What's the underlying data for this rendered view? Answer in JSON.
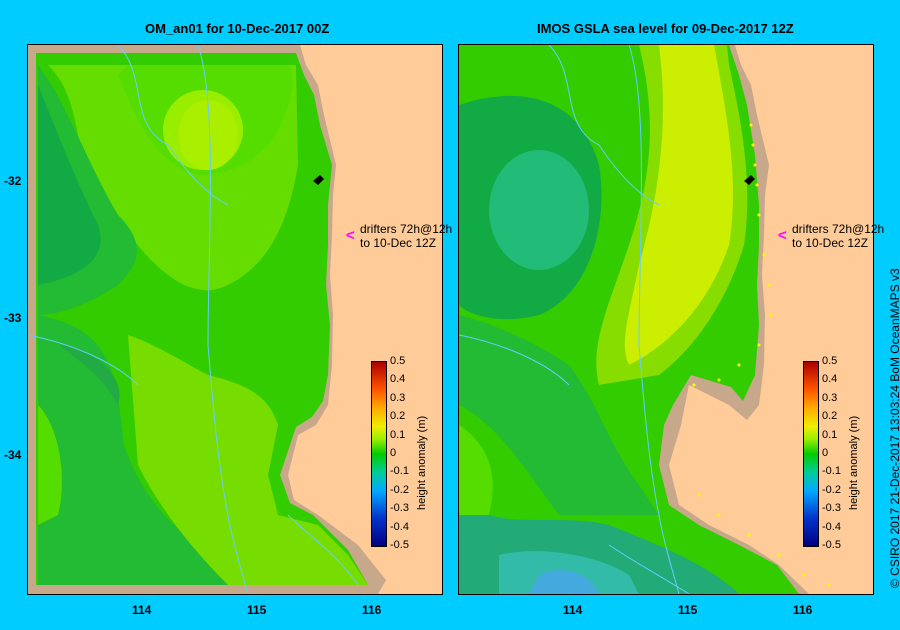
{
  "left_panel": {
    "title": "OM_an01  for 10-Dec-2017 00Z",
    "annotation_line1": "drifters 72h@12h",
    "annotation_line2": "to 10-Dec 12Z"
  },
  "right_panel": {
    "title": "IMOS GSLA sea level  for 09-Dec-2017 12Z",
    "annotation_line1": "drifters 72h@12h",
    "annotation_line2": "to 10-Dec 12Z"
  },
  "y_ticks": [
    "-32",
    "-33",
    "-34"
  ],
  "x_ticks": [
    "114",
    "115",
    "116"
  ],
  "colorbar": {
    "title": "height anomaly (m)",
    "ticks": [
      "0.5",
      "0.4",
      "0.3",
      "0.2",
      "0.1",
      "0",
      "-0.1",
      "-0.2",
      "-0.3",
      "-0.4",
      "-0.5"
    ],
    "range": [
      -0.5,
      0.5
    ]
  },
  "credit": "© CSIRO 2017   21-Dec-2017 13:03:24 BoM OceanMAPS v3",
  "colors": {
    "background": "#00ccff",
    "land": "#ffcc99",
    "coast": "#c8a88a",
    "drifter_arrow": "#ff00ff",
    "bathymetry": "#66ccff"
  }
}
